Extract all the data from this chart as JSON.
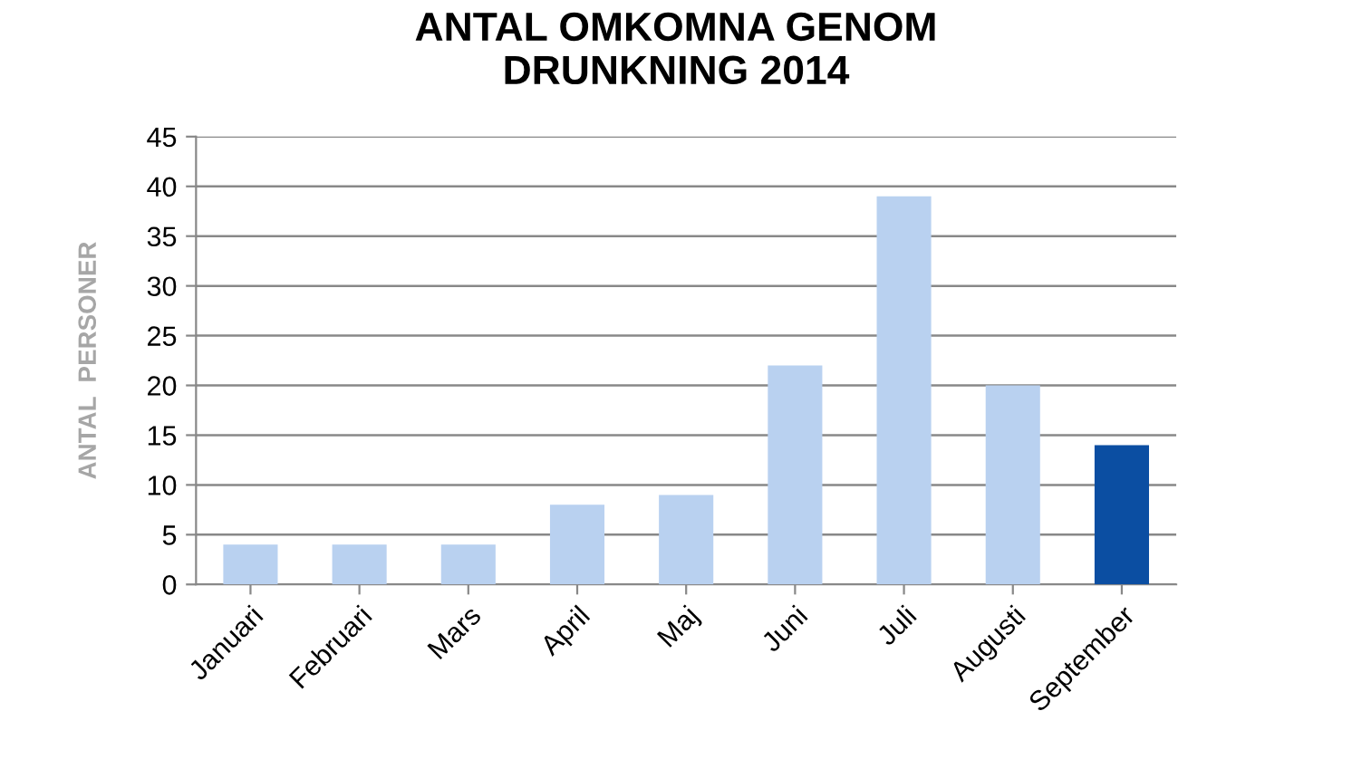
{
  "chart_data": {
    "type": "bar",
    "title": "ANTAL OMKOMNA GENOM\nDRUNKNING 2014",
    "ylabel": "ANTAL  PERSONER",
    "categories": [
      "Januari",
      "Februari",
      "Mars",
      "April",
      "Maj",
      "Juni",
      "Juli",
      "Augusti",
      "September"
    ],
    "values": [
      4,
      4,
      4,
      8,
      9,
      22,
      39,
      20,
      14
    ],
    "colors": [
      "#b9d1f0",
      "#b9d1f0",
      "#b9d1f0",
      "#b9d1f0",
      "#b9d1f0",
      "#b9d1f0",
      "#b9d1f0",
      "#b9d1f0",
      "#0b4ea2"
    ],
    "ylim": [
      0,
      45
    ],
    "yticks": [
      0,
      5,
      10,
      15,
      20,
      25,
      30,
      35,
      40,
      45
    ],
    "grid": "y",
    "legend": false
  }
}
